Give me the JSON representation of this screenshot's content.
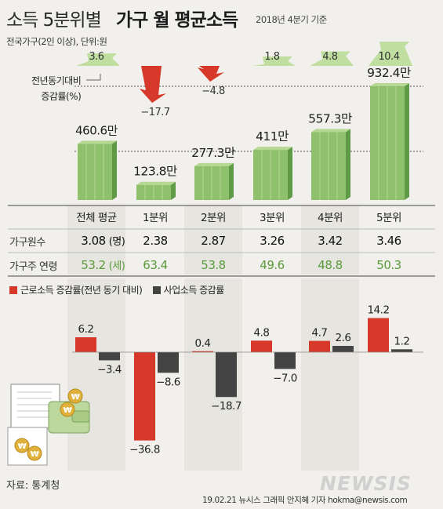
{
  "header": {
    "title_regular": "소득 5분위별",
    "title_bold": "가구 월 평균소득",
    "period": "2018년 4분기 기준",
    "subtitle": "전국가구(2인 이상), 단위:원"
  },
  "yoy_label": "전년동기대비\n증감률(%)",
  "rows": {
    "households_label": "가구원수",
    "age_label": "가구주 연령"
  },
  "source": "자료: 통계청",
  "credit": "19.02.21  뉴시스 그래픽  안지혜 기자  hokma@newsis.com",
  "logo": "NEWSIS",
  "colors": {
    "money": "#8fc06b",
    "money_light": "#b6d893",
    "money_dark": "#5f9a47",
    "labor": "#d6382a",
    "business": "#444444",
    "age_text": "#5b9a3a",
    "arrow_up": "#b9dc97",
    "arrow_down": "#d6382a"
  },
  "chart_data": [
    {
      "type": "bar",
      "title": "소득 5분위별 가구 월 평균소득",
      "unit": "원",
      "categories": [
        "전체 평균",
        "1분위",
        "2분위",
        "3분위",
        "4분위",
        "5분위"
      ],
      "values": [
        4606000,
        1238000,
        2773000,
        4110000,
        5573000,
        9324000
      ],
      "value_labels": [
        "460.6만",
        "123.8만",
        "277.3만",
        "411만",
        "557.3만",
        "932.4만"
      ],
      "yoy_change_pct": [
        3.6,
        -17.7,
        -4.8,
        1.8,
        4.8,
        10.4
      ],
      "yoy_labels": [
        "3.6",
        "-17.7",
        "-4.8",
        "1.8",
        "4.8",
        "10.4"
      ],
      "households": [
        "3.08",
        "2.38",
        "2.87",
        "3.26",
        "3.42",
        "3.46"
      ],
      "households_unit": "(명)",
      "householder_age": [
        "53.2",
        "63.4",
        "53.8",
        "49.6",
        "48.8",
        "50.3"
      ],
      "age_unit": "(세)"
    },
    {
      "type": "bar",
      "categories": [
        "전체 평균",
        "1분위",
        "2분위",
        "3분위",
        "4분위",
        "5분위"
      ],
      "series": [
        {
          "name": "근로소득 증감률(전년 동기 대비)",
          "values": [
            6.2,
            -36.8,
            0.4,
            4.8,
            4.7,
            14.2
          ]
        },
        {
          "name": "사업소득 증감률",
          "values": [
            -3.4,
            -8.6,
            -18.7,
            -7.0,
            2.6,
            1.2
          ]
        }
      ],
      "labels": [
        [
          "6.2",
          "-36.8",
          "0.4",
          "4.8",
          "4.7",
          "14.2"
        ],
        [
          "-3.4",
          "-8.6",
          "-18.7",
          "-7.0",
          "2.6",
          "1.2"
        ]
      ],
      "legend_position": "top-left"
    }
  ]
}
